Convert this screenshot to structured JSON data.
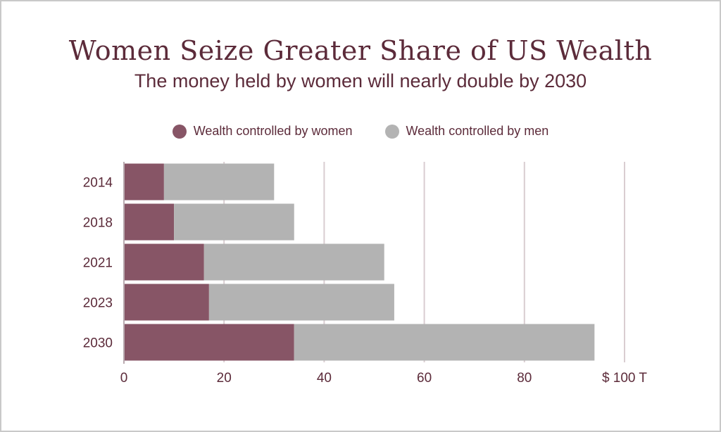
{
  "chart_data": {
    "type": "bar",
    "orientation": "horizontal",
    "stacked": true,
    "title": "Women Seize Greater Share of US Wealth",
    "subtitle": "The money held by women will nearly double by 2030",
    "categories": [
      "2014",
      "2018",
      "2021",
      "2023",
      "2030"
    ],
    "series": [
      {
        "name": "Wealth controlled by women",
        "color": "#875566",
        "values": [
          8,
          10,
          16,
          17,
          34
        ]
      },
      {
        "name": "Wealth controlled by men",
        "color": "#b3b3b3",
        "values": [
          22,
          24,
          36,
          37,
          60
        ]
      }
    ],
    "xlim": [
      0,
      100
    ],
    "xticks": [
      "0",
      "20",
      "40",
      "60",
      "80",
      "$ 100 T"
    ],
    "xtick_values": [
      0,
      20,
      40,
      60,
      80,
      100
    ],
    "grid": true,
    "legend_position": "top"
  }
}
